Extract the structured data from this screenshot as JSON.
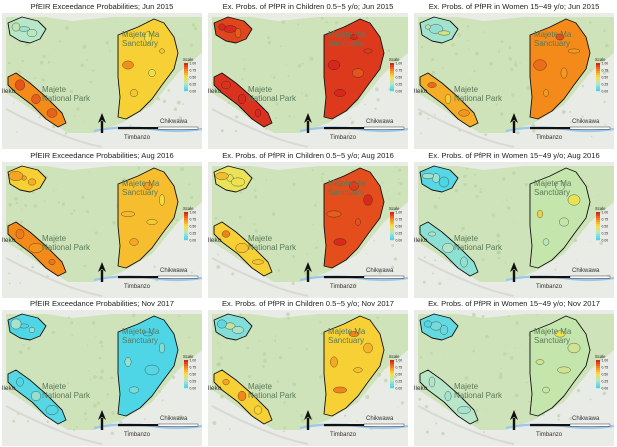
{
  "labels": {
    "reserve_line1": "Majete Ma",
    "reserve_line2": "Sanctuary",
    "park_line1": "Majete",
    "park_line2": "National Park",
    "town_left": "lleko",
    "town_chikwawa": "Chikwawa",
    "town_timbandzo": "Timbanzo",
    "scale_title": "Scale",
    "ticks": [
      "1.00",
      "0.75",
      "0.50",
      "0.25",
      "0.00"
    ]
  },
  "colors": {
    "scale_top": "#d7261e",
    "scale_mid_high": "#f48a1a",
    "scale_mid": "#f7e13c",
    "scale_mid_low": "#b7e6c8",
    "scale_bottom": "#4fd6e6",
    "park_fill": "#cde3b7",
    "river": "#9cc7ea"
  },
  "panels": [
    {
      "title": "PfEIR Exceedance Probabilities;  Jun 2015",
      "level": 0.55,
      "levels": {
        "a": 0.25,
        "b": 0.75,
        "c": 0.55
      }
    },
    {
      "title": "Ex. Probs. of PfPR in Children 0.5−5 y/o;  Jun 2015",
      "level": 0.95,
      "levels": {
        "a": 0.92,
        "b": 0.97,
        "c": 0.95
      }
    },
    {
      "title": "Ex. Probs. of PfPR in Women 15−49 y/o;  Jun 2015",
      "level": 0.5,
      "levels": {
        "a": 0.2,
        "b": 0.65,
        "c": 0.75
      }
    },
    {
      "title": "PfEIR Exceedance Probabilities;  Aug 2016",
      "level": 0.65,
      "levels": {
        "a": 0.55,
        "b": 0.75,
        "c": 0.6
      }
    },
    {
      "title": "Ex. Probs. of PfPR in Children 0.5−5 y/o;  Aug 2016",
      "level": 0.6,
      "levels": {
        "a": 0.45,
        "b": 0.55,
        "c": 0.9
      }
    },
    {
      "title": "Ex. Probs. of PfPR in Women 15−49 y/o;  Aug 2016",
      "level": 0.15,
      "levels": {
        "a": 0.02,
        "b": 0.15,
        "c": 0.3
      }
    },
    {
      "title": "PfEIR Exceedance Probabilities;  Nov 2017",
      "level": 0.02,
      "levels": {
        "a": 0.0,
        "b": 0.02,
        "c": 0.0
      }
    },
    {
      "title": "Ex. Probs. of PfPR in Children 0.5−5 y/o;  Nov 2017",
      "level": 0.35,
      "levels": {
        "a": 0.12,
        "b": 0.55,
        "c": 0.55
      }
    },
    {
      "title": "Ex. Probs. of PfPR in Women 15−49 y/o;  Nov 2017",
      "level": 0.2,
      "levels": {
        "a": 0.05,
        "b": 0.25,
        "c": 0.3
      }
    }
  ]
}
